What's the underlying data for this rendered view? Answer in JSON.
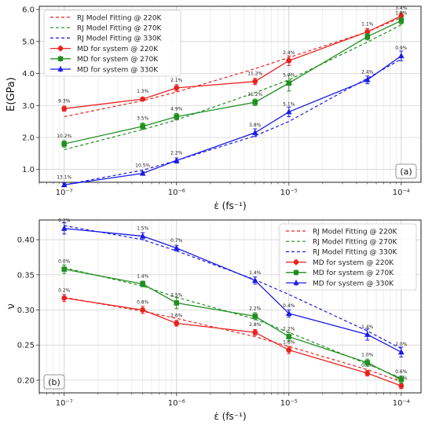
{
  "chart_data": [
    {
      "type": "line",
      "panel_label": "(a)",
      "xlabel": "ε̇ (fs⁻¹)",
      "ylabel": "E(GPa)",
      "xscale": "log",
      "xlim": [
        6e-08,
        0.00015
      ],
      "ylim": [
        0.6,
        6.1
      ],
      "xticks": [
        {
          "v": 1e-07,
          "label": "10⁻⁷"
        },
        {
          "v": 1e-06,
          "label": "10⁻⁶"
        },
        {
          "v": 1e-05,
          "label": "10⁻⁵"
        },
        {
          "v": 0.0001,
          "label": "10⁻⁴"
        }
      ],
      "yticks": [
        {
          "v": 1.0,
          "label": "1.0"
        },
        {
          "v": 2.0,
          "label": "2.0"
        },
        {
          "v": 3.0,
          "label": "3.0"
        },
        {
          "v": 4.0,
          "label": "4.0"
        },
        {
          "v": 5.0,
          "label": "5.0"
        },
        {
          "v": 6.0,
          "label": "6.0"
        }
      ],
      "grid": true,
      "legend_position": "top-left",
      "x": [
        1e-07,
        5e-07,
        1e-06,
        5e-06,
        1e-05,
        5e-05,
        0.0001
      ],
      "series": [
        {
          "name": "RJ Model Fitting @ 220K",
          "kind": "fit",
          "color": "#e8231f",
          "values": [
            2.65,
            3.15,
            3.42,
            4.15,
            4.5,
            5.3,
            5.75
          ]
        },
        {
          "name": "RJ Model Fitting @ 270K",
          "kind": "fit",
          "color": "#1f8f1f",
          "values": [
            1.62,
            2.25,
            2.55,
            3.4,
            3.8,
            4.98,
            5.52
          ]
        },
        {
          "name": "RJ Model Fitting @ 330K",
          "kind": "fit",
          "color": "#1a1ae6",
          "values": [
            0.52,
            0.98,
            1.28,
            2.05,
            2.5,
            3.85,
            4.45
          ]
        },
        {
          "name": "MD for system @ 220K",
          "kind": "md",
          "color": "#e8231f",
          "marker": "circle",
          "values": [
            2.9,
            3.2,
            3.55,
            3.75,
            4.4,
            5.3,
            5.8
          ],
          "errors": [
            0.08,
            0.05,
            0.1,
            0.1,
            0.15,
            0.1,
            0.1
          ],
          "labels": [
            "9.3%",
            "1.3%",
            "2.1%",
            "11.2%",
            "2.4%",
            "1.1%",
            "3.4%"
          ]
        },
        {
          "name": "MD for system @ 270K",
          "kind": "md",
          "color": "#1f8f1f",
          "marker": "square",
          "values": [
            1.8,
            2.35,
            2.65,
            3.1,
            3.7,
            5.15,
            5.65
          ],
          "errors": [
            0.1,
            0.1,
            0.1,
            0.1,
            0.25,
            0.1,
            0.1
          ],
          "labels": [
            "10.2%",
            "3.5%",
            "4.9%",
            "11.2%",
            "5.7%",
            "",
            "1.8%"
          ]
        },
        {
          "name": "MD for system @ 330K",
          "kind": "md",
          "color": "#1a1ae6",
          "marker": "triangle",
          "values": [
            0.52,
            0.88,
            1.28,
            2.15,
            2.8,
            3.8,
            4.55
          ],
          "errors": [
            0.05,
            0.05,
            0.08,
            0.12,
            0.15,
            0.12,
            0.15
          ],
          "labels": [
            "13.1%",
            "10.5%",
            "2.2%",
            "3.8%",
            "5.1%",
            "2.4%",
            "0.9%"
          ]
        }
      ]
    },
    {
      "type": "line",
      "panel_label": "(b)",
      "xlabel": "ε̇ (fs⁻¹)",
      "ylabel": "ν",
      "xscale": "log",
      "xlim": [
        6e-08,
        0.00015
      ],
      "ylim": [
        0.182,
        0.428
      ],
      "xticks": [
        {
          "v": 1e-07,
          "label": "10⁻⁷"
        },
        {
          "v": 1e-06,
          "label": "10⁻⁶"
        },
        {
          "v": 1e-05,
          "label": "10⁻⁵"
        },
        {
          "v": 0.0001,
          "label": "10⁻⁴"
        }
      ],
      "yticks": [
        {
          "v": 0.2,
          "label": "0.20"
        },
        {
          "v": 0.25,
          "label": "0.25"
        },
        {
          "v": 0.3,
          "label": "0.30"
        },
        {
          "v": 0.35,
          "label": "0.35"
        },
        {
          "v": 0.4,
          "label": "0.40"
        }
      ],
      "grid": true,
      "legend_position": "top-right",
      "x": [
        1e-07,
        5e-07,
        1e-06,
        5e-06,
        1e-05,
        5e-05,
        0.0001
      ],
      "series": [
        {
          "name": "RJ Model Fitting @ 220K",
          "kind": "fit",
          "color": "#e8231f",
          "values": [
            0.318,
            0.298,
            0.288,
            0.262,
            0.248,
            0.215,
            0.198
          ]
        },
        {
          "name": "RJ Model Fitting @ 270K",
          "kind": "fit",
          "color": "#1f8f1f",
          "values": [
            0.36,
            0.334,
            0.318,
            0.287,
            0.268,
            0.223,
            0.203
          ]
        },
        {
          "name": "RJ Model Fitting @ 330K",
          "kind": "fit",
          "color": "#1a1ae6",
          "values": [
            0.42,
            0.4,
            0.384,
            0.343,
            0.322,
            0.27,
            0.245
          ]
        },
        {
          "name": "MD for system @ 220K",
          "kind": "md",
          "color": "#e8231f",
          "marker": "circle",
          "values": [
            0.317,
            0.3,
            0.281,
            0.268,
            0.243,
            0.21,
            0.192
          ],
          "errors": [
            0.005,
            0.005,
            0.004,
            0.004,
            0.005,
            0.004,
            0.004
          ],
          "labels": [
            "0.2%",
            "0.8%",
            "2.6%",
            "2.8%",
            "1.6%",
            "0.4%",
            "0.8%"
          ]
        },
        {
          "name": "MD for system @ 270K",
          "kind": "md",
          "color": "#1f8f1f",
          "marker": "square",
          "values": [
            0.358,
            0.337,
            0.31,
            0.291,
            0.262,
            0.225,
            0.201
          ],
          "errors": [
            0.006,
            0.004,
            0.008,
            0.005,
            0.006,
            0.005,
            0.005
          ],
          "labels": [
            "0.0%",
            "1.4%",
            "2.5%",
            "2.2%",
            "2.2%",
            "1.0%",
            "0.6%"
          ]
        },
        {
          "name": "MD for system @ 330K",
          "kind": "md",
          "color": "#1a1ae6",
          "marker": "triangle",
          "values": [
            0.416,
            0.405,
            0.388,
            0.342,
            0.295,
            0.265,
            0.24
          ],
          "errors": [
            0.008,
            0.005,
            0.004,
            0.005,
            0.005,
            0.008,
            0.007
          ],
          "labels": [
            "0.2%",
            "1.5%",
            "0.7%",
            "1.4%",
            "0.4%",
            "1.4%",
            "2.0%"
          ]
        }
      ]
    }
  ]
}
